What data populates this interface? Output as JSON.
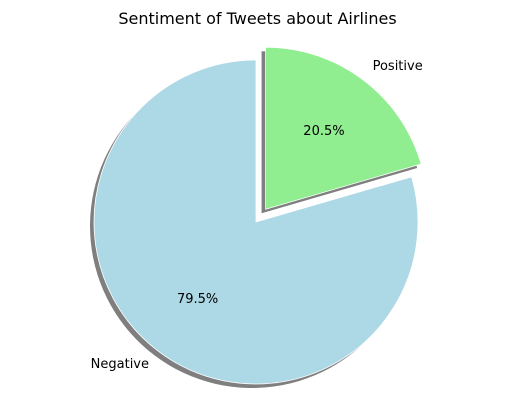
{
  "chart_data": {
    "type": "pie",
    "title": "Sentiment of Tweets about Airlines",
    "slices": [
      {
        "label": "Negative",
        "value": 79.5,
        "pct_label": "79.5%",
        "color": "#add8e6",
        "exploded": false
      },
      {
        "label": "Positive",
        "value": 20.5,
        "pct_label": "20.5%",
        "color": "#90ee90",
        "exploded": true
      }
    ],
    "start_angle_deg": 90,
    "direction": "counterclockwise",
    "shadow": true,
    "shadow_color": "#7f7f7f",
    "edge_color": "#ffffff"
  }
}
